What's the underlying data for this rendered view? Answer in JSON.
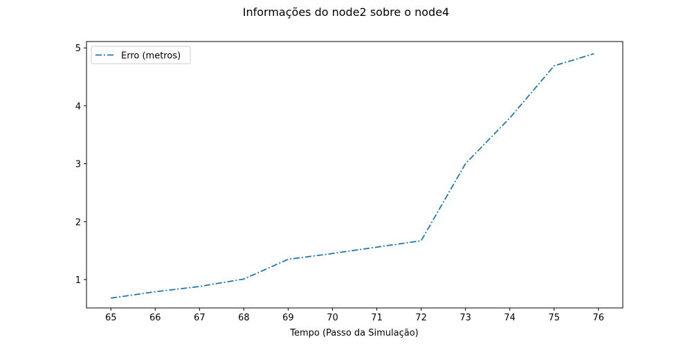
{
  "chart_data": {
    "type": "line",
    "title": "Informações do node2 sobre o node4",
    "xlabel": "Tempo (Passo da Simulação)",
    "ylabel": "",
    "xlim": [
      64.45,
      76.55
    ],
    "ylim": [
      0.51,
      5.11
    ],
    "xticks": [
      65,
      66,
      67,
      68,
      69,
      70,
      71,
      72,
      73,
      74,
      75,
      76
    ],
    "yticks": [
      1,
      2,
      3,
      4,
      5
    ],
    "grid": false,
    "legend_position": "upper left",
    "series": [
      {
        "name": "Erro (metros)",
        "color": "#1f77b4",
        "line_style": "dash-dot",
        "x": [
          65,
          66,
          67,
          68,
          69,
          70,
          71,
          72,
          73,
          74,
          75,
          75.9
        ],
        "y": [
          0.68,
          0.79,
          0.88,
          1.01,
          1.35,
          1.45,
          1.56,
          1.67,
          3.0,
          3.79,
          4.69,
          4.9
        ]
      }
    ]
  }
}
